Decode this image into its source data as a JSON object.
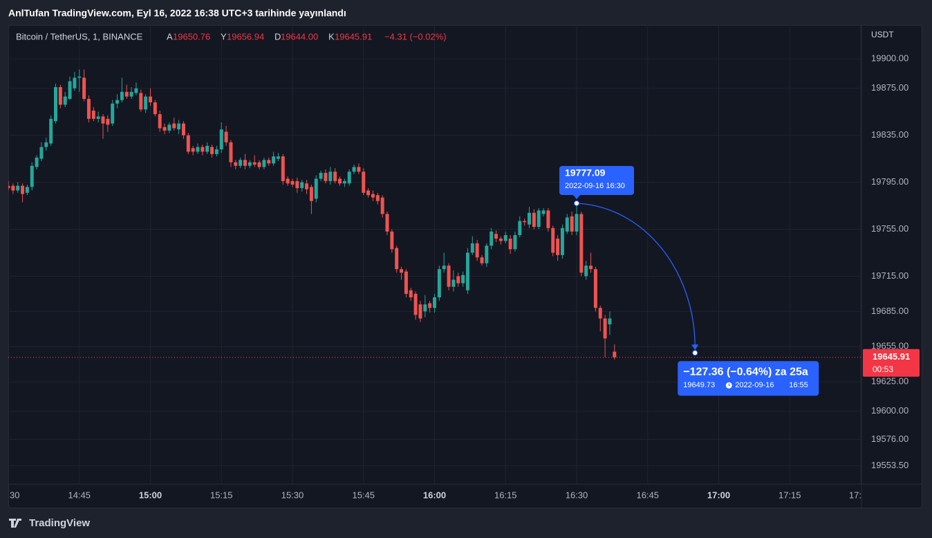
{
  "header": {
    "title": "AnlTufan TradingView.com, Eyl 16, 2022 16:38 UTC+3 tarihinde yayınlandı"
  },
  "footer": {
    "brand": "TradingView"
  },
  "chart_data": {
    "type": "candlestick",
    "legend": {
      "symbol": "Bitcoin / TetherUS, 1, BINANCE",
      "items": [
        {
          "label": "A",
          "value": "19650.76"
        },
        {
          "label": "Y",
          "value": "19656.94"
        },
        {
          "label": "D",
          "value": "19644.00"
        },
        {
          "label": "K",
          "value": "19645.91"
        }
      ],
      "change": "−4.31 (−0.02%)"
    },
    "y_axis_label": "USDT",
    "countdown": "00:53",
    "colors": {
      "up": "#26a69a",
      "down": "#ef5350",
      "measure": "#2962ff"
    },
    "grid": true,
    "xlim": [
      "14:30",
      "17:30"
    ],
    "xticks": [
      {
        "value": "14:30",
        "label": "30"
      },
      "14:45",
      "15:00",
      "15:15",
      "15:30",
      "15:45",
      "16:00",
      "16:15",
      "16:30",
      "16:45",
      "17:00",
      "17:15",
      {
        "value": "17:30",
        "label": "17:"
      }
    ],
    "ylim": [
      19538,
      19929
    ],
    "yticks": [
      {
        "value": 19900,
        "label": "19900.00"
      },
      {
        "value": 19875,
        "label": "19875.00"
      },
      {
        "value": 19835,
        "label": "19835.00"
      },
      {
        "value": 19795,
        "label": "19795.00"
      },
      {
        "value": 19755,
        "label": "19755.00"
      },
      {
        "value": 19715,
        "label": "19715.00"
      },
      {
        "value": 19685,
        "label": "19685.00"
      },
      {
        "value": 19655,
        "label": "19655.00"
      },
      {
        "value": 19625,
        "label": "19625.00"
      },
      {
        "value": 19600,
        "label": "19600.00"
      },
      {
        "value": 19576,
        "label": "19576.00"
      },
      {
        "value": 19553.5,
        "label": "19553.50"
      }
    ],
    "x": [
      "14:30",
      "14:31",
      "14:32",
      "14:33",
      "14:34",
      "14:35",
      "14:36",
      "14:37",
      "14:38",
      "14:39",
      "14:40",
      "14:41",
      "14:42",
      "14:43",
      "14:44",
      "14:45",
      "14:46",
      "14:47",
      "14:48",
      "14:49",
      "14:50",
      "14:51",
      "14:52",
      "14:53",
      "14:54",
      "14:55",
      "14:56",
      "14:57",
      "14:58",
      "14:59",
      "15:00",
      "15:01",
      "15:02",
      "15:03",
      "15:04",
      "15:05",
      "15:06",
      "15:07",
      "15:08",
      "15:09",
      "15:10",
      "15:11",
      "15:12",
      "15:13",
      "15:14",
      "15:15",
      "15:16",
      "15:17",
      "15:18",
      "15:19",
      "15:20",
      "15:21",
      "15:22",
      "15:23",
      "15:24",
      "15:25",
      "15:26",
      "15:27",
      "15:28",
      "15:29",
      "15:30",
      "15:31",
      "15:32",
      "15:33",
      "15:34",
      "15:35",
      "15:36",
      "15:37",
      "15:38",
      "15:39",
      "15:40",
      "15:41",
      "15:42",
      "15:43",
      "15:44",
      "15:45",
      "15:46",
      "15:47",
      "15:48",
      "15:49",
      "15:50",
      "15:51",
      "15:52",
      "15:53",
      "15:54",
      "15:55",
      "15:56",
      "15:57",
      "15:58",
      "15:59",
      "16:00",
      "16:01",
      "16:02",
      "16:03",
      "16:04",
      "16:05",
      "16:06",
      "16:07",
      "16:08",
      "16:09",
      "16:10",
      "16:11",
      "16:12",
      "16:13",
      "16:14",
      "16:15",
      "16:16",
      "16:17",
      "16:18",
      "16:19",
      "16:20",
      "16:21",
      "16:22",
      "16:23",
      "16:24",
      "16:25",
      "16:26",
      "16:27",
      "16:28",
      "16:29",
      "16:30",
      "16:31",
      "16:32",
      "16:33",
      "16:34",
      "16:35",
      "16:36",
      "16:37",
      "16:38"
    ],
    "open": [
      19792,
      19792,
      19788,
      19792,
      19786,
      19791,
      19808,
      19815,
      19825,
      19828,
      19847,
      19876,
      19861,
      19866,
      19875,
      19884,
      19884,
      19866,
      19856,
      19849,
      19851,
      19849,
      19845,
      19862,
      19865,
      19872,
      19868,
      19871,
      19871,
      19857,
      19868,
      19863,
      19853,
      19842,
      19839,
      19845,
      19840,
      19845,
      19835,
      19824,
      19821,
      19825,
      19821,
      19825,
      19819,
      19823,
      19838,
      19829,
      19812,
      19809,
      19814,
      19809,
      19812,
      19812,
      19808,
      19814,
      19811,
      19815,
      19817,
      19798,
      19796,
      19796,
      19790,
      19794,
      19791,
      19781,
      19798,
      19803,
      19796,
      19804,
      19798,
      19794,
      19794,
      19804,
      19808,
      19804,
      19788,
      19785,
      19784,
      19782,
      19768,
      19753,
      19739,
      19721,
      19719,
      19703,
      19700,
      19691,
      19685,
      19692,
      19688,
      19697,
      19721,
      19724,
      19706,
      19715,
      19709,
      19703,
      19735,
      19743,
      19731,
      19726,
      19741,
      19751,
      19747,
      19745,
      19747,
      19738,
      19750,
      19762,
      19759,
      19769,
      19757,
      19768,
      19771,
      19756,
      19747,
      19733,
      19753,
      19766,
      19753,
      19768,
      19715,
      19724,
      19721,
      19688,
      19679,
      19674,
      19650.76
    ],
    "high": [
      19796,
      19794,
      19795,
      19794,
      19793,
      19812,
      19818,
      19829,
      19833,
      19852,
      19879,
      19878,
      19872,
      19885,
      19889,
      19891,
      19891,
      19869,
      19859,
      19855,
      19853,
      19852,
      19865,
      19870,
      19884,
      19878,
      19876,
      19880,
      19874,
      19870,
      19875,
      19865,
      19856,
      19845,
      19846,
      19850,
      19848,
      19847,
      19837,
      19826,
      19828,
      19827,
      19829,
      19827,
      19826,
      19846,
      19843,
      19831,
      19814,
      19816,
      19819,
      19814,
      19818,
      19814,
      19816,
      19816,
      19821,
      19820,
      19819,
      19800,
      19798,
      19799,
      19797,
      19797,
      19793,
      19801,
      19805,
      19806,
      19808,
      19807,
      19800,
      19798,
      19806,
      19810,
      19811,
      19807,
      19790,
      19788,
      19786,
      19784,
      19770,
      19755,
      19741,
      19723,
      19721,
      19705,
      19702,
      19694,
      19699,
      19694,
      19700,
      19724,
      19735,
      19726,
      19720,
      19718,
      19719,
      19739,
      19749,
      19746,
      19733,
      19743,
      19756,
      19754,
      19749,
      19753,
      19750,
      19753,
      19766,
      19764,
      19774,
      19772,
      19773,
      19773,
      19773,
      19758,
      19750,
      19759,
      19768,
      19770,
      19777.09,
      19770,
      19728,
      19735,
      19723,
      19690,
      19682,
      19685,
      19656.94
    ],
    "low": [
      19788,
      19785,
      19786,
      19778,
      19784,
      19788,
      19806,
      19813,
      19822,
      19826,
      19845,
      19858,
      19859,
      19865,
      19873,
      19872,
      19864,
      19846,
      19847,
      19846,
      19832,
      19838,
      19843,
      19858,
      19863,
      19866,
      19866,
      19869,
      19855,
      19854,
      19860,
      19851,
      19838,
      19836,
      19837,
      19839,
      19836,
      19832,
      19819,
      19818,
      19819,
      19818,
      19819,
      19816,
      19817,
      19820,
      19826,
      19808,
      19806,
      19807,
      19806,
      19807,
      19808,
      19806,
      19806,
      19809,
      19809,
      19813,
      19793,
      19792,
      19791,
      19786,
      19787,
      19785,
      19768,
      19778,
      19796,
      19794,
      19793,
      19794,
      19792,
      19791,
      19792,
      19802,
      19802,
      19784,
      19782,
      19779,
      19776,
      19765,
      19750,
      19735,
      19718,
      19712,
      19697,
      19694,
      19678,
      19676,
      19680,
      19684,
      19684,
      19694,
      19718,
      19703,
      19702,
      19706,
      19706,
      19700,
      19733,
      19728,
      19724,
      19723,
      19738,
      19744,
      19742,
      19743,
      19734,
      19736,
      19748,
      19758,
      19756,
      19755,
      19755,
      19766,
      19753,
      19732,
      19728,
      19730,
      19751,
      19750,
      19750,
      19715,
      19712,
      19718,
      19685,
      19668,
      19646,
      19665,
      19644
    ],
    "close": [
      19790,
      19788,
      19792,
      19785,
      19791,
      19809,
      19816,
      19825,
      19829,
      19849,
      19876,
      19861,
      19868,
      19881,
      19884,
      19885,
      19866,
      19849,
      19849,
      19851,
      19845,
      19844,
      19862,
      19865,
      19872,
      19868,
      19872,
      19875,
      19857,
      19868,
      19863,
      19853,
      19841,
      19839,
      19844,
      19841,
      19845,
      19835,
      19821,
      19821,
      19825,
      19821,
      19826,
      19819,
      19823,
      19840,
      19829,
      19812,
      19809,
      19814,
      19809,
      19812,
      19810,
      19808,
      19814,
      19811,
      19817,
      19817,
      19796,
      19794,
      19793,
      19790,
      19795,
      19789,
      19779,
      19798,
      19803,
      19796,
      19804,
      19796,
      19794,
      19796,
      19804,
      19808,
      19804,
      19786,
      19784,
      19782,
      19779,
      19768,
      19753,
      19738,
      19721,
      19718,
      19700,
      19697,
      19682,
      19679,
      19691,
      19688,
      19697,
      19721,
      19724,
      19706,
      19712,
      19709,
      19716,
      19735,
      19743,
      19731,
      19726,
      19741,
      19753,
      19747,
      19745,
      19750,
      19738,
      19750,
      19762,
      19761,
      19769,
      19757,
      19771,
      19771,
      19756,
      19735,
      19733,
      19756,
      19765,
      19753,
      19768,
      19718,
      19724,
      19721,
      19688,
      19679,
      19662,
      19679,
      19645.91
    ],
    "measure": {
      "from": {
        "value": 19777.09,
        "date": "2022-09-16 16:30"
      },
      "to": {
        "value": 19649.73,
        "date": "2022-09-16",
        "time": "16:55"
      },
      "text": "−127.36 (−0.64%) za 25a"
    }
  }
}
